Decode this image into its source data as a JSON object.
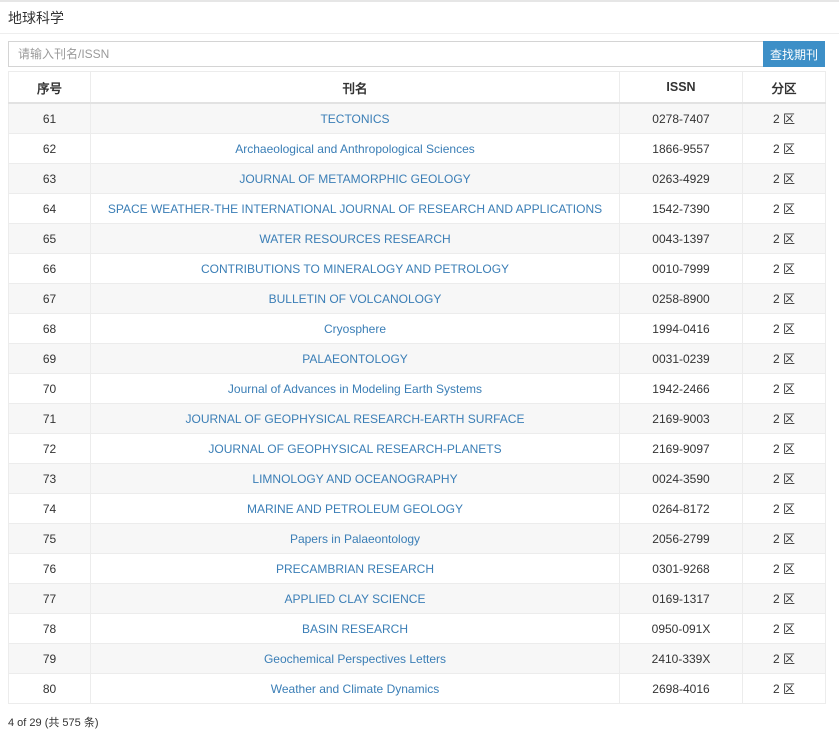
{
  "panel": {
    "title": "地球科学"
  },
  "search": {
    "placeholder": "请输入刊名/ISSN",
    "value": "",
    "button_label": "查找期刊"
  },
  "table": {
    "headers": {
      "index": "序号",
      "name": "刊名",
      "issn": "ISSN",
      "zone": "分区"
    },
    "rows": [
      {
        "index": "61",
        "name": "TECTONICS",
        "issn": "0278-7407",
        "zone": "2 区"
      },
      {
        "index": "62",
        "name": "Archaeological and Anthropological Sciences",
        "issn": "1866-9557",
        "zone": "2 区"
      },
      {
        "index": "63",
        "name": "JOURNAL OF METAMORPHIC GEOLOGY",
        "issn": "0263-4929",
        "zone": "2 区"
      },
      {
        "index": "64",
        "name": "SPACE WEATHER-THE INTERNATIONAL JOURNAL OF RESEARCH AND APPLICATIONS",
        "issn": "1542-7390",
        "zone": "2 区"
      },
      {
        "index": "65",
        "name": "WATER RESOURCES RESEARCH",
        "issn": "0043-1397",
        "zone": "2 区"
      },
      {
        "index": "66",
        "name": "CONTRIBUTIONS TO MINERALOGY AND PETROLOGY",
        "issn": "0010-7999",
        "zone": "2 区"
      },
      {
        "index": "67",
        "name": "BULLETIN OF VOLCANOLOGY",
        "issn": "0258-8900",
        "zone": "2 区"
      },
      {
        "index": "68",
        "name": "Cryosphere",
        "issn": "1994-0416",
        "zone": "2 区"
      },
      {
        "index": "69",
        "name": "PALAEONTOLOGY",
        "issn": "0031-0239",
        "zone": "2 区"
      },
      {
        "index": "70",
        "name": "Journal of Advances in Modeling Earth Systems",
        "issn": "1942-2466",
        "zone": "2 区"
      },
      {
        "index": "71",
        "name": "JOURNAL OF GEOPHYSICAL RESEARCH-EARTH SURFACE",
        "issn": "2169-9003",
        "zone": "2 区"
      },
      {
        "index": "72",
        "name": "JOURNAL OF GEOPHYSICAL RESEARCH-PLANETS",
        "issn": "2169-9097",
        "zone": "2 区"
      },
      {
        "index": "73",
        "name": "LIMNOLOGY AND OCEANOGRAPHY",
        "issn": "0024-3590",
        "zone": "2 区"
      },
      {
        "index": "74",
        "name": "MARINE AND PETROLEUM GEOLOGY",
        "issn": "0264-8172",
        "zone": "2 区"
      },
      {
        "index": "75",
        "name": "Papers in Palaeontology",
        "issn": "2056-2799",
        "zone": "2 区"
      },
      {
        "index": "76",
        "name": "PRECAMBRIAN RESEARCH",
        "issn": "0301-9268",
        "zone": "2 区"
      },
      {
        "index": "77",
        "name": "APPLIED CLAY SCIENCE",
        "issn": "0169-1317",
        "zone": "2 区"
      },
      {
        "index": "78",
        "name": "BASIN RESEARCH",
        "issn": "0950-091X",
        "zone": "2 区"
      },
      {
        "index": "79",
        "name": "Geochemical Perspectives Letters",
        "issn": "2410-339X",
        "zone": "2 区"
      },
      {
        "index": "80",
        "name": "Weather and Climate Dynamics",
        "issn": "2698-4016",
        "zone": "2 区"
      }
    ]
  },
  "pager": {
    "text": "4 of 29 (共 575 条)"
  },
  "colors": {
    "accent": "#3d8fc7",
    "link": "#3a7eb6",
    "stripe": "#f7f7f7"
  }
}
